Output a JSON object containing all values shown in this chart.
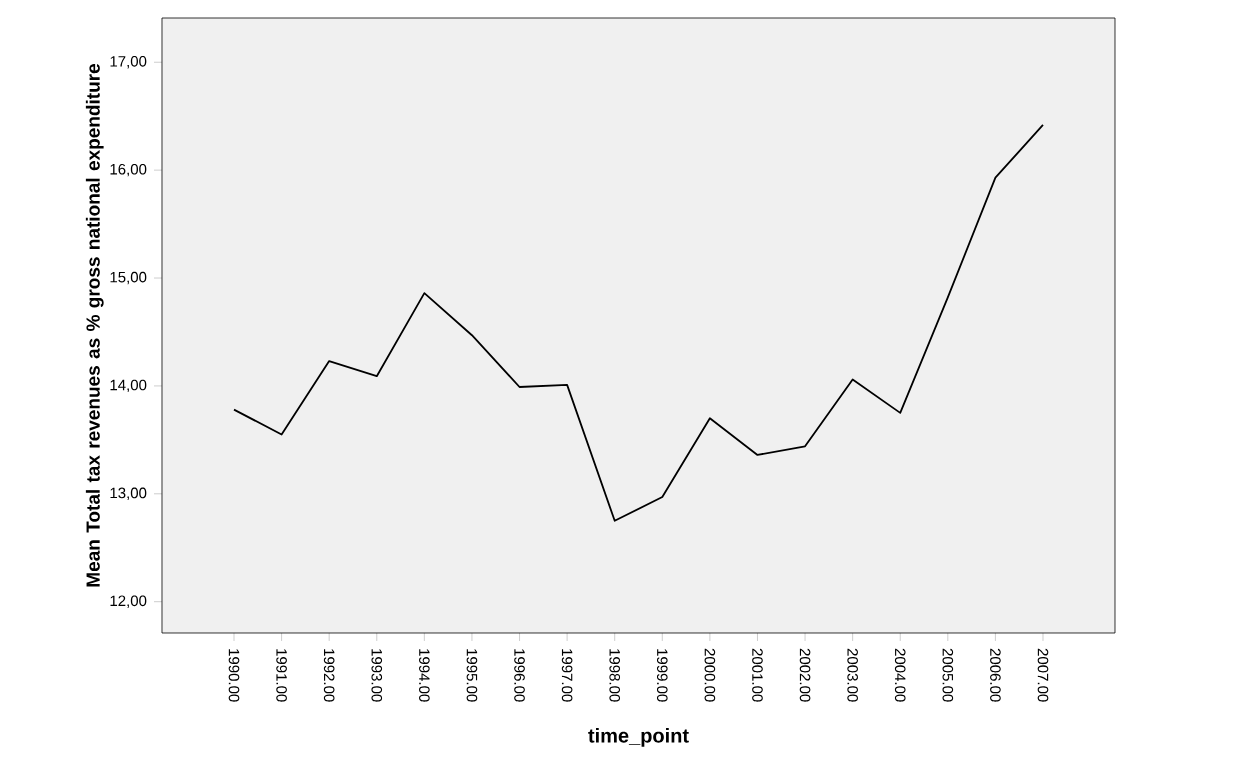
{
  "chart_data": {
    "type": "line",
    "xlabel": "time_point",
    "ylabel": "Mean Total tax revenues as % gross national expenditure",
    "categories": [
      "1990.00",
      "1991.00",
      "1992.00",
      "1993.00",
      "1994.00",
      "1995.00",
      "1996.00",
      "1997.00",
      "1998.00",
      "1999.00",
      "2000.00",
      "2001.00",
      "2002.00",
      "2003.00",
      "2004.00",
      "2005.00",
      "2006.00",
      "2007.00"
    ],
    "series": [
      {
        "color": "#000000",
        "values": [
          13.78,
          13.55,
          14.23,
          14.09,
          14.86,
          14.47,
          13.99,
          14.01,
          12.75,
          12.97,
          13.7,
          13.36,
          13.44,
          14.06,
          13.75,
          14.82,
          15.93,
          16.42
        ]
      }
    ],
    "ylim": [
      11.71,
      17.41
    ],
    "yticks": [
      {
        "value": 12,
        "label": "12,00"
      },
      {
        "value": 13,
        "label": "13,00"
      },
      {
        "value": 14,
        "label": "14,00"
      },
      {
        "value": 15,
        "label": "15,00"
      },
      {
        "value": 16,
        "label": "16,00"
      },
      {
        "value": 17,
        "label": "17,00"
      }
    ],
    "marker": "none",
    "line_style": "solid"
  }
}
